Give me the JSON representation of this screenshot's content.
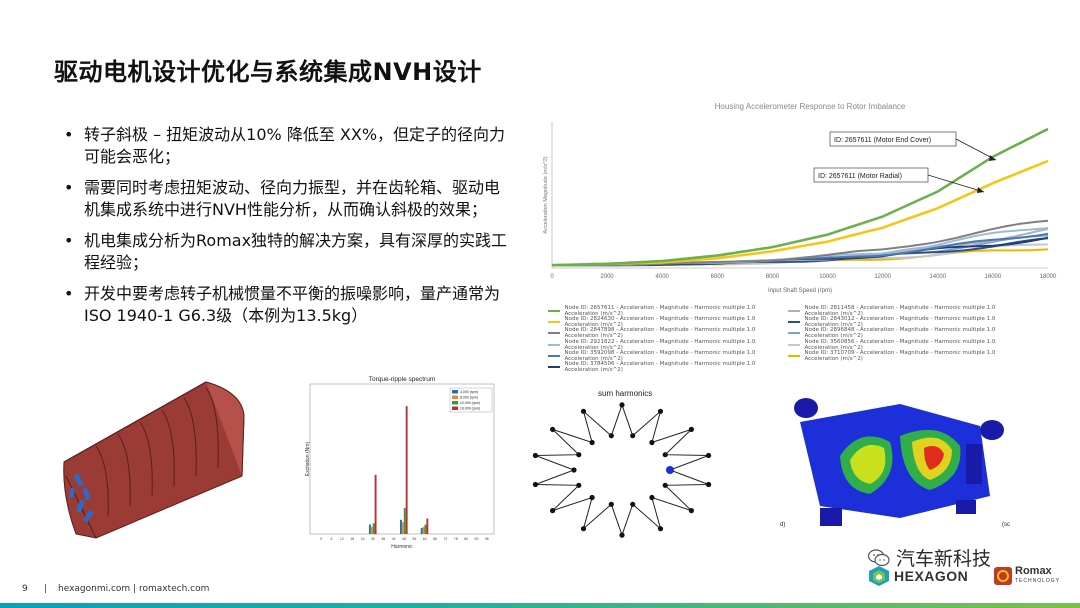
{
  "slide": {
    "title": "驱动电机设计优化与系统集成NVH设计",
    "bullets": [
      "转子斜极 – 扭矩波动从10% 降低至 XX%，但定子的径向力可能会恶化；",
      "需要同时考虑扭矩波动、径向力振型，并在齿轮箱、驱动电机集成系统中进行NVH性能分析，从而确认斜极的效果；",
      "机电集成分析为Romax独特的解决方案，具有深厚的实践工程经验；",
      "开发中要考虑转子机械惯量不平衡的振噪影响，量产通常为ISO 1940-1 G6.3级（本例为13.5kg）"
    ]
  },
  "chart_data": [
    {
      "type": "line",
      "title": "Housing Accelerometer Response to Rotor Imbalance",
      "xlabel": "Input Shaft Speed (rpm)",
      "ylabel": "Acceleration Magnitude (m/s^2)",
      "xlim": [
        0,
        18000
      ],
      "x_ticks": [
        0,
        2000,
        4000,
        6000,
        8000,
        10000,
        12000,
        14000,
        16000,
        18000
      ],
      "grid": false,
      "annotations": [
        "ID: 2657611 (Motor End Cover)",
        "ID: 2657611 (Motor Radial)"
      ],
      "x": [
        0,
        2000,
        4000,
        6000,
        8000,
        10000,
        12000,
        14000,
        16000,
        18000
      ],
      "series": [
        {
          "name": "Node ID: 2657611 - Acceleration - Magnitude - Harmonic multiple 1.0 Acceleration (m/s^2)",
          "color": "#6ab04c",
          "values": [
            0.02,
            0.03,
            0.05,
            0.09,
            0.15,
            0.24,
            0.37,
            0.55,
            0.8,
            1.0
          ]
        },
        {
          "name": "Node ID: 2824630 - Acceleration - Magnitude - Harmonic multiple 1.0 Acceleration (m/s^2)",
          "color": "#f5c518",
          "values": [
            0.02,
            0.03,
            0.04,
            0.07,
            0.12,
            0.19,
            0.29,
            0.43,
            0.61,
            0.77
          ]
        },
        {
          "name": "Node ID: 2847898 - Acceleration - Magnitude - Harmonic multiple 1.0 Acceleration (m/s^2)",
          "color": "#808080",
          "values": [
            0.02,
            0.02,
            0.03,
            0.04,
            0.06,
            0.09,
            0.13,
            0.2,
            0.27,
            0.34
          ]
        },
        {
          "name": "Node ID: 2921822 - Acceleration - Magnitude - Harmonic multiple 1.0 Acceleration (m/s^2)",
          "color": "#9bbbd9",
          "values": [
            0.02,
            0.02,
            0.03,
            0.04,
            0.06,
            0.08,
            0.11,
            0.17,
            0.24,
            0.3
          ]
        },
        {
          "name": "Node ID: 3592098 - Acceleration - Magnitude - Harmonic multiple 1.0 Acceleration (m/s^2)",
          "color": "#4a78b5",
          "values": [
            0.02,
            0.02,
            0.03,
            0.04,
            0.05,
            0.07,
            0.1,
            0.14,
            0.2,
            0.26
          ]
        },
        {
          "name": "Node ID: 3784506 - Acceleration - Magnitude - Harmonic multiple 1.0 Acceleration (m/s^2)",
          "color": "#1f3f73",
          "values": [
            0.02,
            0.02,
            0.025,
            0.035,
            0.05,
            0.07,
            0.09,
            0.13,
            0.17,
            0.22
          ]
        },
        {
          "name": "Node ID: 2811458 - Acceleration - Magnitude - Harmonic multiple 1.0 Acceleration (m/s^2)",
          "color": "#b0b0b0",
          "values": [
            0.02,
            0.02,
            0.03,
            0.04,
            0.05,
            0.07,
            0.1,
            0.15,
            0.21,
            0.27
          ]
        },
        {
          "name": "Node ID: 2843012 - Acceleration - Magnitude - Harmonic multiple 1.0 Acceleration (m/s^2)",
          "color": "#2d4f86",
          "values": [
            0.02,
            0.02,
            0.025,
            0.03,
            0.045,
            0.06,
            0.085,
            0.12,
            0.16,
            0.2
          ]
        },
        {
          "name": "Node ID: 2896848 - Acceleration - Magnitude - Harmonic multiple 1.0 Acceleration (m/s^2)",
          "color": "#7fa3cf",
          "values": [
            0.02,
            0.02,
            0.025,
            0.035,
            0.05,
            0.065,
            0.09,
            0.13,
            0.18,
            0.23
          ]
        },
        {
          "name": "Node ID: 3560856 - Acceleration - Magnitude - Harmonic multiple 1.0 Acceleration (m/s^2)",
          "color": "#c7c7c7",
          "values": [
            0.02,
            0.02,
            0.025,
            0.03,
            0.04,
            0.055,
            0.075,
            0.1,
            0.14,
            0.18
          ]
        },
        {
          "name": "Node ID: 3710709 - Acceleration - Magnitude - Harmonic multiple 1.0 Acceleration (m/s^2)",
          "color": "#f0b400",
          "values": [
            0.02,
            0.02,
            0.025,
            0.03,
            0.04,
            0.05,
            0.07,
            0.09,
            0.12,
            0.15
          ]
        }
      ]
    },
    {
      "type": "bar",
      "title": "Torque-ripple spectrum",
      "xlabel": "Harmonic",
      "ylabel": "Excitation (Nm)",
      "categories": [
        "0",
        "6",
        "12",
        "18",
        "24",
        "30",
        "36",
        "42",
        "48",
        "54",
        "60",
        "66",
        "72",
        "78",
        "84",
        "90",
        "96"
      ],
      "legend_position": "top-right",
      "series": [
        {
          "name": "4,000 (rpm)",
          "color": "#1f6fb4",
          "values": [
            0,
            0,
            0,
            0,
            0,
            0.8,
            0,
            0,
            1.2,
            0,
            0.5,
            0,
            0,
            0,
            0,
            0,
            0
          ]
        },
        {
          "name": "8,000 (rpm)",
          "color": "#e68a2e",
          "values": [
            0,
            0,
            0,
            0,
            0,
            0.6,
            0,
            0,
            1.0,
            0,
            0.6,
            0,
            0,
            0,
            0,
            0,
            0
          ]
        },
        {
          "name": "12,000 (rpm)",
          "color": "#3a9a3a",
          "values": [
            0,
            0,
            0,
            0,
            0,
            0.9,
            0,
            0,
            2.2,
            0,
            0.8,
            0,
            0,
            0,
            0,
            0,
            0
          ]
        },
        {
          "name": "16,000 (rpm)",
          "color": "#b8312f",
          "values": [
            0,
            0,
            0,
            0,
            0,
            5.0,
            0,
            0,
            10.8,
            0,
            1.3,
            0,
            0,
            0,
            0,
            0,
            0
          ]
        }
      ]
    }
  ],
  "figures": {
    "harmonics_label": "sum harmonics",
    "fea_label_d": "d)",
    "fea_label_e": "(sc"
  },
  "footer": {
    "page_number": "9",
    "separator": "|",
    "urls": "hexagonmi.com | romaxtech.com",
    "wechat_label": "汽车新科技",
    "hexagon_label": "HEXAGON",
    "romax_label": "Romax",
    "romax_sub": "TECHNOLOGY"
  },
  "colors": {
    "footer_gradient_start": "#0aa0b8",
    "footer_gradient_end": "#7cc04a",
    "rotor_body": "#9a3b35",
    "magnet_blue": "#2e6ac6"
  }
}
